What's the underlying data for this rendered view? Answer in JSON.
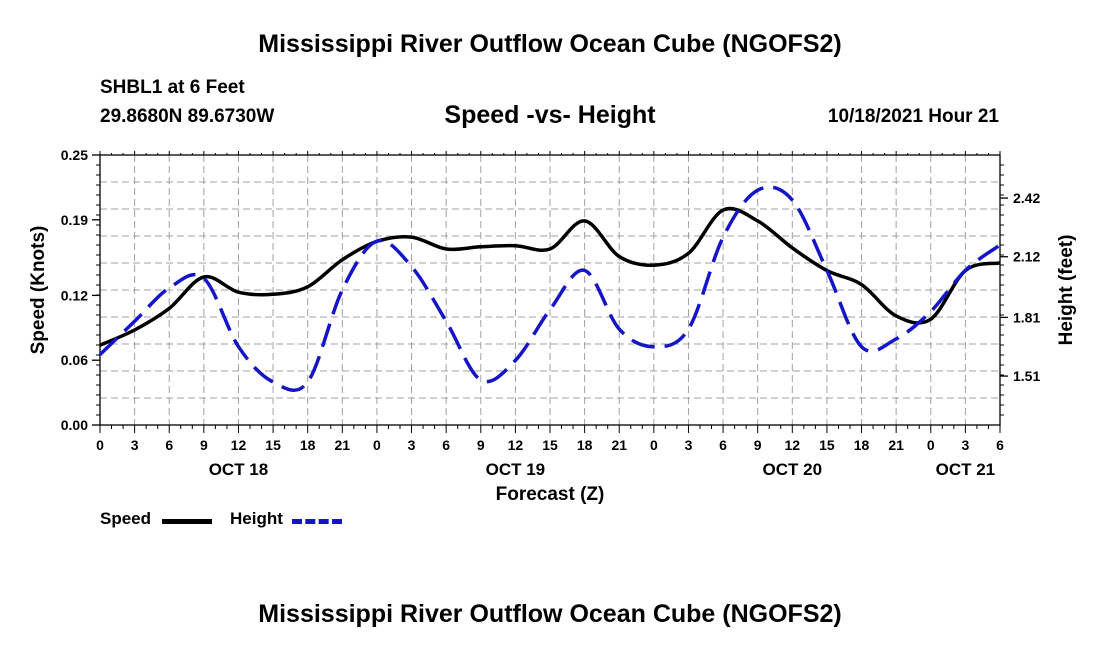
{
  "header": {
    "title": "Mississippi River Outflow Ocean Cube (NGOFS2)",
    "station": "SHBL1 at 6 Feet",
    "coordinates": "29.8680N  89.6730W",
    "subtitle": "Speed -vs- Height",
    "datetime": "10/18/2021 Hour 21"
  },
  "footer": {
    "title": "Mississippi River Outflow Ocean Cube (NGOFS2)"
  },
  "legend": {
    "speed_label": "Speed",
    "height_label": "Height"
  },
  "chart_data": {
    "type": "line",
    "title": "Speed -vs- Height",
    "xlabel": "Forecast (Z)",
    "ylabel": "Speed (Knots)",
    "y2label": "Height (feet)",
    "x_unit": "hours since OCT 18 00Z",
    "xlim": [
      0,
      78
    ],
    "ylim": [
      0,
      0.25
    ],
    "y2lim": [
      1.26,
      2.64
    ],
    "x_ticks": [
      0,
      3,
      6,
      9,
      12,
      15,
      18,
      21,
      24,
      27,
      30,
      33,
      36,
      39,
      42,
      45,
      48,
      51,
      54,
      57,
      60,
      63,
      66,
      69,
      72,
      75,
      78
    ],
    "x_tick_labels": [
      "0",
      "3",
      "6",
      "9",
      "12",
      "15",
      "18",
      "21",
      "0",
      "3",
      "6",
      "9",
      "12",
      "15",
      "18",
      "21",
      "0",
      "3",
      "6",
      "9",
      "12",
      "15",
      "18",
      "21",
      "0",
      "3",
      "6"
    ],
    "date_labels": [
      {
        "x": 12,
        "label": "OCT 18"
      },
      {
        "x": 36,
        "label": "OCT 19"
      },
      {
        "x": 60,
        "label": "OCT 20"
      },
      {
        "x": 75,
        "label": "OCT 21"
      }
    ],
    "y_ticks": [
      0.0,
      0.06,
      0.12,
      0.19,
      0.25
    ],
    "y_tick_labels": [
      "0.00",
      "0.06",
      "0.12",
      "0.19",
      "0.25"
    ],
    "y2_ticks": [
      1.51,
      1.81,
      2.12,
      2.42
    ],
    "y2_tick_labels": [
      "1.51",
      "1.81",
      "2.12",
      "2.42"
    ],
    "grid": true,
    "legend": "bottom-left",
    "series": [
      {
        "name": "Speed",
        "axis": "left",
        "color": "#000000",
        "style": "solid",
        "x": [
          0,
          3,
          6,
          9,
          12,
          15,
          18,
          21,
          24,
          27,
          30,
          33,
          36,
          39,
          42,
          45,
          48,
          51,
          54,
          57,
          60,
          63,
          66,
          69,
          72,
          75,
          78
        ],
        "values": [
          0.074,
          0.088,
          0.108,
          0.137,
          0.123,
          0.121,
          0.128,
          0.153,
          0.17,
          0.174,
          0.163,
          0.165,
          0.166,
          0.163,
          0.189,
          0.156,
          0.148,
          0.159,
          0.199,
          0.189,
          0.164,
          0.143,
          0.13,
          0.101,
          0.098,
          0.143,
          0.15
        ]
      },
      {
        "name": "Height",
        "axis": "right",
        "color": "#1515c8",
        "style": "dashed",
        "x": [
          0,
          3,
          6,
          9,
          12,
          15,
          18,
          21,
          24,
          27,
          30,
          33,
          36,
          39,
          42,
          45,
          48,
          51,
          54,
          57,
          60,
          63,
          66,
          69,
          72,
          75,
          78
        ],
        "values": [
          1.62,
          1.79,
          1.96,
          2.01,
          1.66,
          1.48,
          1.48,
          1.95,
          2.2,
          2.07,
          1.79,
          1.49,
          1.59,
          1.85,
          2.05,
          1.75,
          1.66,
          1.75,
          2.22,
          2.46,
          2.41,
          2.05,
          1.66,
          1.7,
          1.84,
          2.05,
          2.18
        ]
      }
    ]
  }
}
